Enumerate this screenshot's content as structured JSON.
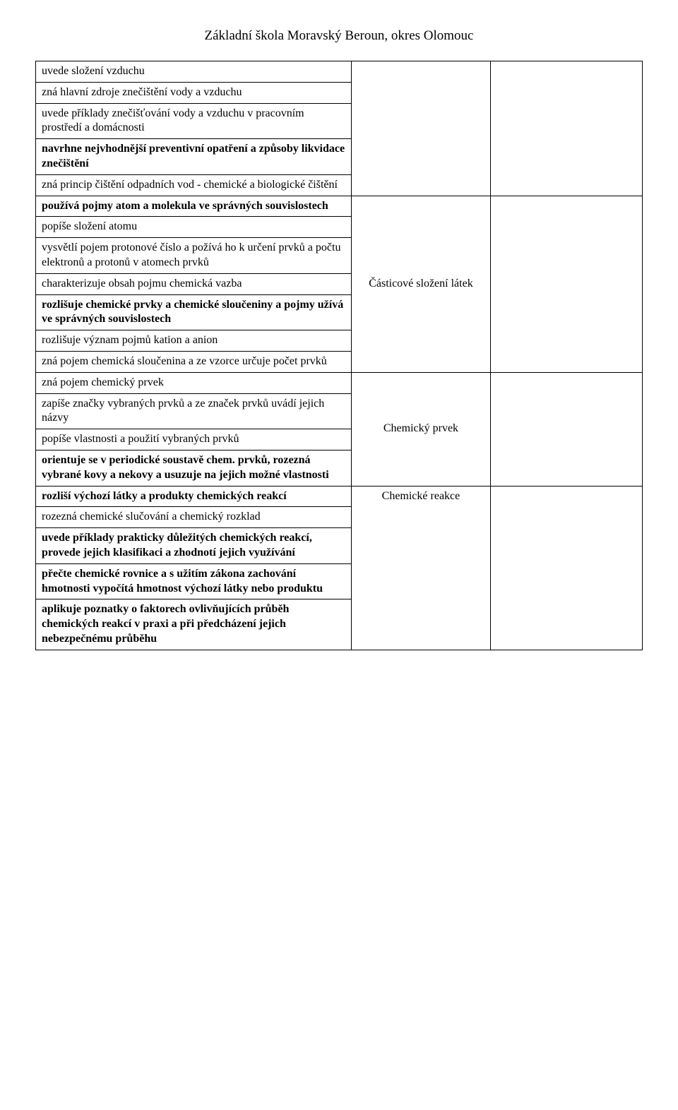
{
  "header": {
    "title": "Základní škola Moravský Beroun, okres Olomouc"
  },
  "table": {
    "cells": {
      "r0c0": "uvede složení vzduchu",
      "r1c0": "zná hlavní zdroje znečištění vody a vzduchu",
      "r2c0": "uvede příklady znečišťování vody a vzduchu v pracovním prostředí a domácnosti",
      "r3c0": "navrhne nejvhodnější preventivní opatření a způsoby likvidace znečištění",
      "r4c0": "zná princip čištění odpadních vod - chemické a biologické čištění",
      "r5c0": "používá pojmy atom a molekula ve správných souvislostech",
      "r5c1": "Částicové složení látek",
      "r6c0": "popíše složení atomu",
      "r7c0": "vysvětlí pojem protonové číslo a požívá ho k určení prvků a počtu elektronů a protonů v atomech prvků",
      "r8c0": "charakterizuje obsah pojmu chemická vazba",
      "r9c0": "rozlišuje chemické prvky a chemické sloučeniny a pojmy užívá ve správných souvislostech",
      "r10c0": "rozlišuje význam pojmů kation a anion",
      "r11c0": "zná pojem chemická sloučenina a ze vzorce určuje počet prvků",
      "r12c0": "zná pojem chemický prvek",
      "r12c1": "Chemický prvek",
      "r13c0": "zapíše značky vybraných prvků a ze značek prvků uvádí jejich názvy",
      "r14c0": "popíše vlastnosti a použití vybraných prvků",
      "r15c0": "orientuje se v periodické soustavě chem. prvků, rozezná  vybrané kovy a nekovy a usuzuje na jejich možné vlastnosti",
      "r16c0": "rozliší výchozí látky a produkty chemických reakcí",
      "r16c1": "Chemické reakce",
      "r17c0": "rozezná chemické slučování a chemický rozklad",
      "r18c0": "uvede příklady prakticky důležitých chemických reakcí, provede jejich klasifikaci a zhodnotí jejich využívání",
      "r19c0": "přečte chemické rovnice a s užitím zákona zachování hmotnosti vypočítá hmotnost výchozí látky nebo produktu",
      "r20c0": "aplikuje poznatky o faktorech ovlivňujících průběh chemických reakcí v praxi a při předcházení jejich nebezpečnému průběhu"
    }
  }
}
